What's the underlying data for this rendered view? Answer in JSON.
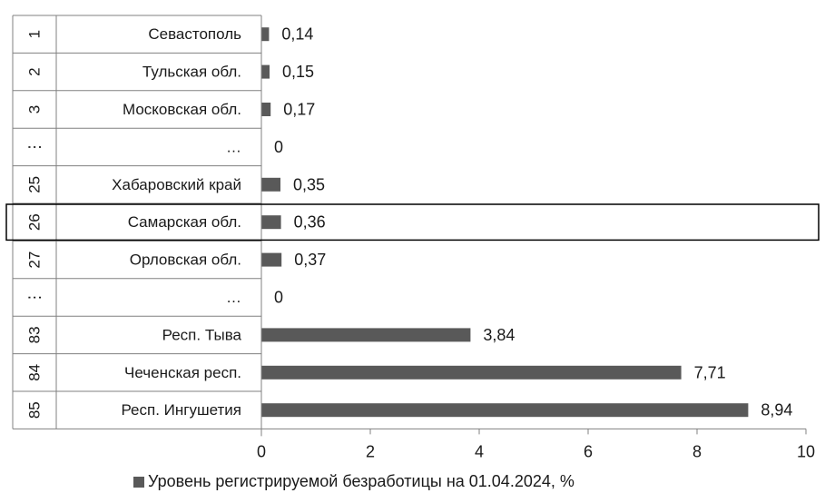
{
  "chart_data": {
    "type": "bar",
    "orientation": "horizontal",
    "rank_labels": [
      "1",
      "2",
      "3",
      "⋮",
      "25",
      "26",
      "27",
      "⋮",
      "83",
      "84",
      "85"
    ],
    "categories": [
      "Севастополь",
      "Тульская обл.",
      "Московская обл.",
      "…",
      "Хабаровский край",
      "Самарская обл.",
      "Орловская обл.",
      "…",
      "Респ. Тыва",
      "Чеченская респ.",
      "Респ. Ингушетия"
    ],
    "series": [
      {
        "name": "Уровень регистрируемой безработицы на 01.04.2024, %",
        "values": [
          0.14,
          0.15,
          0.17,
          0,
          0.35,
          0.36,
          0.37,
          0,
          3.84,
          7.71,
          8.94
        ],
        "value_labels": [
          "0,14",
          "0,15",
          "0,17",
          "0",
          "0,35",
          "0,36",
          "0,37",
          "0",
          "3,84",
          "7,71",
          "8,94"
        ]
      }
    ],
    "x_ticks": [
      0,
      2,
      4,
      6,
      8,
      10
    ],
    "xlim": [
      0,
      10
    ],
    "highlighted_category_index": 5,
    "grid": false,
    "legend_position": "bottom",
    "colors": {
      "bar": "#595959",
      "axis": "#808080",
      "text": "#1a1a1a",
      "highlight_border": "#000000"
    }
  }
}
